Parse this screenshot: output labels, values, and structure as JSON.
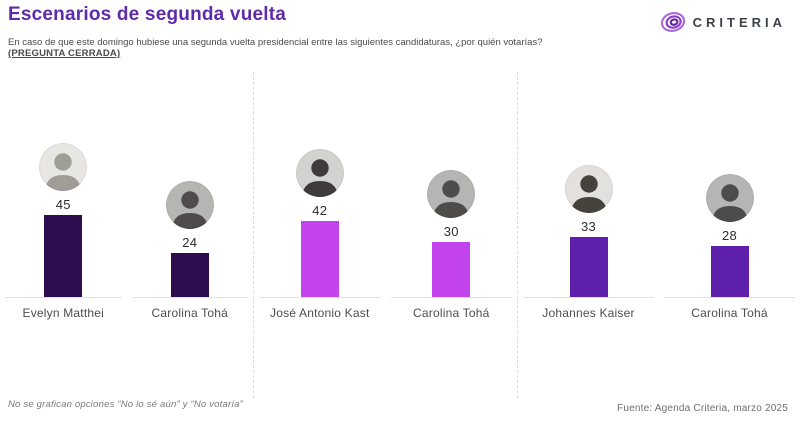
{
  "header": {
    "title": "Escenarios de segunda vuelta",
    "subtitle": "En caso de que este domingo hubiese una segunda vuelta presidencial entre las siguientes candidaturas, ¿por quién votarías?",
    "question_type": "(PREGUNTA CERRADA)",
    "logo_text": "CRITERIA",
    "title_color": "#5e2ba9"
  },
  "footer": {
    "footnote": "No se grafican opciones “No lo sé aún” y “No votaría”",
    "source": "Fuente: Agenda Criteria, marzo 2025"
  },
  "chart_data": {
    "type": "bar",
    "title": "Escenarios de segunda vuelta",
    "subtitle": "En caso de que este domingo hubiese una segunda vuelta presidencial entre las siguientes candidaturas, ¿por quién votarías?",
    "value_unit": "percent",
    "ylim": [
      0,
      50
    ],
    "grid": false,
    "legend": "none",
    "scenarios": [
      {
        "name": "Matthei vs Tohá",
        "bar_color": "#2e0d4f",
        "candidates": [
          {
            "name": "Evelyn Matthei",
            "value": 45,
            "avatar_bg": "#e7e6e2",
            "avatar_fg": "#a09d96"
          },
          {
            "name": "Carolina Tohá",
            "value": 24,
            "avatar_bg": "#b5b5b3",
            "avatar_fg": "#4e4c4a"
          }
        ]
      },
      {
        "name": "Kast vs Tohá",
        "bar_color": "#c343ef",
        "candidates": [
          {
            "name": "José Antonio Kast",
            "value": 42,
            "avatar_bg": "#d2d2d0",
            "avatar_fg": "#3e3c3a"
          },
          {
            "name": "Carolina Tohá",
            "value": 30,
            "avatar_bg": "#b5b5b3",
            "avatar_fg": "#4e4c4a"
          }
        ]
      },
      {
        "name": "Kaiser vs Tohá",
        "bar_color": "#5e20aa",
        "candidates": [
          {
            "name": "Johannes Kaiser",
            "value": 33,
            "avatar_bg": "#e2e1df",
            "avatar_fg": "#45423e"
          },
          {
            "name": "Carolina Tohá",
            "value": 28,
            "avatar_bg": "#b5b5b3",
            "avatar_fg": "#4e4c4a"
          }
        ]
      }
    ]
  }
}
